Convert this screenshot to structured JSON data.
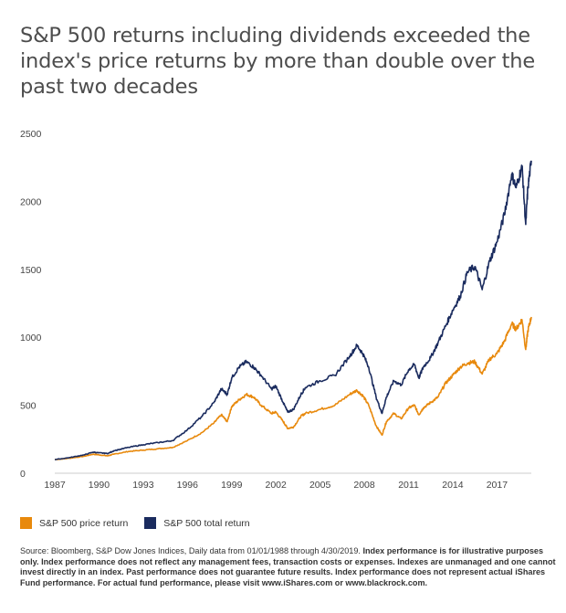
{
  "chart_data": {
    "type": "line",
    "title": "S&P 500 returns including dividends exceeded the index's price returns by more than double over the past two decades",
    "xlabel": "",
    "ylabel": "",
    "ylim": [
      0,
      2500
    ],
    "xlim": [
      1987,
      2019.33
    ],
    "yticks": [
      0,
      500,
      1000,
      1500,
      2000,
      2500
    ],
    "xticks": [
      "1987",
      "1990",
      "1993",
      "1996",
      "1999",
      "2002",
      "2005",
      "2008",
      "2011",
      "2014",
      "2017"
    ],
    "grid": false,
    "legend_position": "bottom-left",
    "series": [
      {
        "name": "S&P 500 price return",
        "color": "#e8890c",
        "points": [
          [
            1987.0,
            100
          ],
          [
            1988.0,
            110
          ],
          [
            1989.0,
            125
          ],
          [
            1989.6,
            140
          ],
          [
            1990.0,
            135
          ],
          [
            1990.6,
            128
          ],
          [
            1991.0,
            140
          ],
          [
            1992.0,
            160
          ],
          [
            1993.0,
            170
          ],
          [
            1994.0,
            180
          ],
          [
            1995.0,
            190
          ],
          [
            1996.0,
            240
          ],
          [
            1997.0,
            300
          ],
          [
            1997.8,
            370
          ],
          [
            1998.3,
            430
          ],
          [
            1998.7,
            380
          ],
          [
            1999.0,
            490
          ],
          [
            1999.5,
            540
          ],
          [
            2000.0,
            580
          ],
          [
            2000.5,
            560
          ],
          [
            2001.0,
            500
          ],
          [
            2001.7,
            440
          ],
          [
            2002.0,
            450
          ],
          [
            2002.5,
            380
          ],
          [
            2002.8,
            330
          ],
          [
            2003.2,
            340
          ],
          [
            2003.7,
            420
          ],
          [
            2004.0,
            440
          ],
          [
            2005.0,
            470
          ],
          [
            2006.0,
            500
          ],
          [
            2007.0,
            580
          ],
          [
            2007.5,
            610
          ],
          [
            2007.9,
            570
          ],
          [
            2008.3,
            500
          ],
          [
            2008.8,
            350
          ],
          [
            2009.2,
            280
          ],
          [
            2009.5,
            380
          ],
          [
            2010.0,
            440
          ],
          [
            2010.5,
            400
          ],
          [
            2011.0,
            480
          ],
          [
            2011.4,
            500
          ],
          [
            2011.7,
            430
          ],
          [
            2012.0,
            480
          ],
          [
            2012.5,
            520
          ],
          [
            2013.0,
            560
          ],
          [
            2013.5,
            660
          ],
          [
            2014.0,
            720
          ],
          [
            2014.5,
            780
          ],
          [
            2015.0,
            810
          ],
          [
            2015.5,
            820
          ],
          [
            2016.0,
            730
          ],
          [
            2016.5,
            840
          ],
          [
            2017.0,
            880
          ],
          [
            2017.5,
            970
          ],
          [
            2018.0,
            1100
          ],
          [
            2018.3,
            1060
          ],
          [
            2018.7,
            1130
          ],
          [
            2018.95,
            910
          ],
          [
            2019.1,
            1050
          ],
          [
            2019.33,
            1150
          ]
        ]
      },
      {
        "name": "S&P 500 total return",
        "color": "#1a2b5e",
        "points": [
          [
            1987.0,
            100
          ],
          [
            1988.0,
            115
          ],
          [
            1989.0,
            135
          ],
          [
            1989.6,
            155
          ],
          [
            1990.0,
            150
          ],
          [
            1990.6,
            145
          ],
          [
            1991.0,
            165
          ],
          [
            1992.0,
            190
          ],
          [
            1993.0,
            210
          ],
          [
            1994.0,
            225
          ],
          [
            1995.0,
            240
          ],
          [
            1996.0,
            320
          ],
          [
            1997.0,
            420
          ],
          [
            1997.8,
            520
          ],
          [
            1998.3,
            620
          ],
          [
            1998.7,
            580
          ],
          [
            1999.0,
            700
          ],
          [
            1999.5,
            780
          ],
          [
            2000.0,
            820
          ],
          [
            2000.5,
            780
          ],
          [
            2001.0,
            720
          ],
          [
            2001.7,
            620
          ],
          [
            2002.0,
            640
          ],
          [
            2002.5,
            520
          ],
          [
            2002.8,
            450
          ],
          [
            2003.2,
            470
          ],
          [
            2003.7,
            580
          ],
          [
            2004.0,
            630
          ],
          [
            2005.0,
            680
          ],
          [
            2006.0,
            720
          ],
          [
            2007.0,
            860
          ],
          [
            2007.5,
            940
          ],
          [
            2007.9,
            880
          ],
          [
            2008.3,
            780
          ],
          [
            2008.8,
            560
          ],
          [
            2009.2,
            440
          ],
          [
            2009.5,
            560
          ],
          [
            2010.0,
            680
          ],
          [
            2010.5,
            650
          ],
          [
            2011.0,
            760
          ],
          [
            2011.4,
            800
          ],
          [
            2011.7,
            700
          ],
          [
            2012.0,
            780
          ],
          [
            2012.5,
            850
          ],
          [
            2013.0,
            960
          ],
          [
            2013.5,
            1080
          ],
          [
            2014.0,
            1200
          ],
          [
            2014.5,
            1300
          ],
          [
            2015.0,
            1480
          ],
          [
            2015.5,
            1520
          ],
          [
            2016.0,
            1350
          ],
          [
            2016.5,
            1560
          ],
          [
            2017.0,
            1700
          ],
          [
            2017.5,
            1900
          ],
          [
            2018.0,
            2200
          ],
          [
            2018.3,
            2100
          ],
          [
            2018.7,
            2260
          ],
          [
            2018.95,
            1830
          ],
          [
            2019.1,
            2100
          ],
          [
            2019.33,
            2300
          ]
        ]
      }
    ]
  },
  "legend": {
    "price_label": "S&P 500 price return",
    "total_label": "S&P 500 total return",
    "price_color": "#e8890c",
    "total_color": "#1a2b5e"
  },
  "source": {
    "plain": "Source: Bloomberg, S&P Dow Jones Indices, Daily data from 01/01/1988 through 4/30/2019.",
    "bold": "Index performance is for illustrative purposes only.  Index performance does not reflect any management fees, transaction costs or expenses. Indexes are unmanaged and one cannot invest directly in an index. Past performance does not guarantee future results. Index performance does not represent actual iShares Fund performance. For actual fund performance, please visit www.iShares.com or www.blackrock.com."
  }
}
